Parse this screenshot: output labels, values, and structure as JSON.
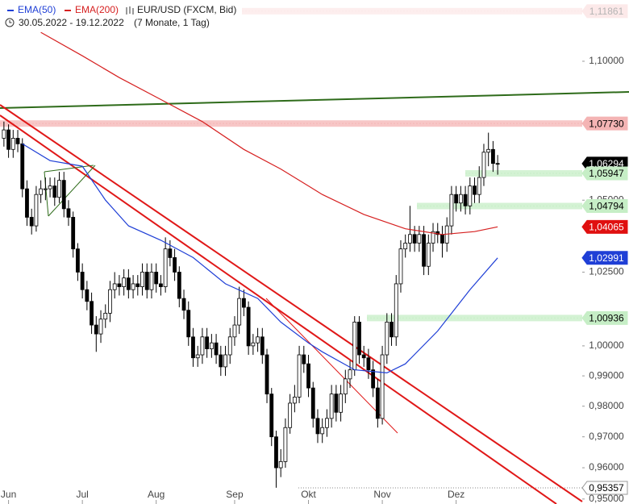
{
  "chart_data": {
    "type": "candlestick",
    "title": "EUR/USD (FXCM, Bid)",
    "period": "30.05.2022 - 19.12.2022",
    "duration": "(7 Monate, 1 Tag)",
    "log_scale": true,
    "ylim": [
      0.9497,
      1.1228
    ],
    "yticks": [
      {
        "value": 1.1,
        "label": "1,10000"
      },
      {
        "value": 1.05,
        "label": "1,05000"
      },
      {
        "value": 1.025,
        "label": "1,02500"
      },
      {
        "value": 1.0,
        "label": "1,00000"
      },
      {
        "value": 0.99,
        "label": "0,99000"
      },
      {
        "value": 0.98,
        "label": "0,98000"
      },
      {
        "value": 0.97,
        "label": "0,97000"
      },
      {
        "value": 0.96,
        "label": "0,96000"
      },
      {
        "value": 0.95,
        "label": "0,95000"
      }
    ],
    "xticks": [
      {
        "value": 1,
        "label": "Jun"
      },
      {
        "value": 17,
        "label": "Jul"
      },
      {
        "value": 33,
        "label": "Aug"
      },
      {
        "value": 50,
        "label": "Sep"
      },
      {
        "value": 66,
        "label": "Okt"
      },
      {
        "value": 82,
        "label": "Nov"
      },
      {
        "value": 98,
        "label": "Dez"
      }
    ],
    "ohlc": {
      "open": [
        1.072,
        1.075,
        1.068,
        1.072,
        1.07,
        1.054,
        1.044,
        1.041,
        1.052,
        1.054,
        1.054,
        1.055,
        1.051,
        1.057,
        1.047,
        1.044,
        1.033,
        1.025,
        1.019,
        1.015,
        1.007,
        1.004,
        1.009,
        1.011,
        1.019,
        1.021,
        1.02,
        1.023,
        1.019,
        1.021,
        1.02,
        1.025,
        1.019,
        1.025,
        1.021,
        1.02,
        1.033,
        1.03,
        1.025,
        1.016,
        1.012,
        1.003,
        0.996,
        0.997,
        1.003,
        0.999,
        1.001,
        0.997,
        0.993,
        0.997,
        1.003,
        1.007,
        1.016,
        1.013,
        1.0,
        1.001,
        1.003,
        0.997,
        0.984,
        0.97,
        0.96,
        0.962,
        0.973,
        0.981,
        0.983,
        0.997,
        0.994,
        0.986,
        0.976,
        0.971,
        0.973,
        0.976,
        0.984,
        0.978,
        0.984,
        0.989,
        0.992,
        1.008,
        0.997,
        0.996,
        0.992,
        0.986,
        0.976,
        0.997,
        1.008,
        1.003,
        1.021,
        1.033,
        1.035,
        1.038,
        1.035,
        1.038,
        1.027,
        1.035,
        1.039,
        1.038,
        1.035,
        1.041,
        1.052,
        1.049,
        1.052,
        1.048,
        1.055,
        1.052,
        1.058,
        1.067,
        1.068,
        1.063
      ],
      "high": [
        1.078,
        1.077,
        1.075,
        1.075,
        1.072,
        1.057,
        1.047,
        1.055,
        1.057,
        1.058,
        1.058,
        1.058,
        1.06,
        1.06,
        1.05,
        1.046,
        1.035,
        1.028,
        1.022,
        1.018,
        1.01,
        1.012,
        1.014,
        1.022,
        1.025,
        1.024,
        1.026,
        1.026,
        1.024,
        1.024,
        1.028,
        1.028,
        1.028,
        1.028,
        1.024,
        1.037,
        1.036,
        1.033,
        1.027,
        1.019,
        1.015,
        1.006,
        1.0,
        1.006,
        1.006,
        1.004,
        1.004,
        1.0,
        1.0,
        1.006,
        1.01,
        1.02,
        1.019,
        1.015,
        1.004,
        1.006,
        1.006,
        0.999,
        0.986,
        0.972,
        0.966,
        0.976,
        0.984,
        0.987,
        1.0,
        1.0,
        0.997,
        0.988,
        0.979,
        0.976,
        0.979,
        0.987,
        0.987,
        0.987,
        0.992,
        0.995,
        1.01,
        1.01,
        1.0,
        0.999,
        0.995,
        0.989,
        1.0,
        1.011,
        1.011,
        1.024,
        1.036,
        1.038,
        1.048,
        1.041,
        1.041,
        1.041,
        1.038,
        1.042,
        1.042,
        1.041,
        1.044,
        1.055,
        1.055,
        1.055,
        1.055,
        1.058,
        1.058,
        1.062,
        1.07,
        1.074,
        1.071,
        1.066
      ],
      "low": [
        1.069,
        1.065,
        1.065,
        1.067,
        1.051,
        1.041,
        1.038,
        1.039,
        1.049,
        1.05,
        1.051,
        1.048,
        1.049,
        1.044,
        1.041,
        1.03,
        1.022,
        1.016,
        1.012,
        1.004,
        0.998,
        1.001,
        1.006,
        1.008,
        1.016,
        1.017,
        1.017,
        1.016,
        1.016,
        1.017,
        1.017,
        1.016,
        1.016,
        1.018,
        1.017,
        1.018,
        1.027,
        1.022,
        1.013,
        1.009,
        1.0,
        0.993,
        0.993,
        0.994,
        0.996,
        0.996,
        0.994,
        0.99,
        0.99,
        0.994,
        1.0,
        1.004,
        1.01,
        0.997,
        0.997,
        0.998,
        0.994,
        0.981,
        0.967,
        0.9536,
        0.957,
        0.96,
        0.971,
        0.978,
        0.981,
        0.991,
        0.983,
        0.973,
        0.968,
        0.968,
        0.97,
        0.973,
        0.975,
        0.975,
        0.981,
        0.986,
        0.99,
        0.994,
        0.993,
        0.989,
        0.983,
        0.973,
        0.974,
        0.994,
        1.0,
        1.0,
        1.018,
        1.03,
        1.032,
        1.032,
        1.032,
        1.024,
        1.024,
        1.032,
        1.035,
        1.03,
        1.032,
        1.038,
        1.046,
        1.046,
        1.045,
        1.045,
        1.049,
        1.049,
        1.055,
        1.062,
        1.06,
        1.059
      ],
      "close": [
        1.075,
        1.068,
        1.072,
        1.07,
        1.054,
        1.044,
        1.041,
        1.052,
        1.054,
        1.054,
        1.055,
        1.051,
        1.057,
        1.047,
        1.044,
        1.033,
        1.025,
        1.019,
        1.015,
        1.007,
        1.004,
        1.009,
        1.011,
        1.019,
        1.021,
        1.02,
        1.023,
        1.019,
        1.021,
        1.02,
        1.025,
        1.019,
        1.025,
        1.021,
        1.02,
        1.033,
        1.03,
        1.025,
        1.016,
        1.012,
        1.003,
        0.996,
        0.997,
        1.003,
        0.999,
        1.001,
        0.997,
        0.993,
        0.997,
        1.003,
        1.007,
        1.016,
        1.013,
        1.0,
        1.001,
        1.003,
        0.997,
        0.984,
        0.97,
        0.96,
        0.962,
        0.973,
        0.981,
        0.983,
        0.997,
        0.994,
        0.986,
        0.976,
        0.971,
        0.973,
        0.976,
        0.984,
        0.978,
        0.984,
        0.989,
        0.992,
        1.008,
        0.997,
        0.996,
        0.992,
        0.986,
        0.976,
        0.997,
        1.008,
        1.003,
        1.021,
        1.033,
        1.035,
        1.038,
        1.035,
        1.038,
        1.027,
        1.035,
        1.039,
        1.038,
        1.035,
        1.041,
        1.052,
        1.049,
        1.052,
        1.048,
        1.055,
        1.052,
        1.058,
        1.067,
        1.068,
        1.063,
        1.06294
      ]
    },
    "indicators": [
      {
        "name": "EMA(50)",
        "color": "#1f3fd6",
        "x": [
          4,
          10,
          17,
          22,
          27,
          34,
          41,
          48,
          55,
          60,
          66,
          69,
          76,
          83,
          87,
          94,
          101,
          107
        ],
        "values": [
          1.07,
          1.064,
          1.062,
          1.05,
          1.041,
          1.036,
          1.03,
          1.021,
          1.016,
          1.008,
          1.001,
          0.998,
          0.992,
          0.991,
          0.994,
          1.005,
          1.019,
          1.02991
        ]
      },
      {
        "name": "EMA(200)",
        "color": "#d62020",
        "x": [
          8,
          17,
          25,
          34,
          43,
          52,
          60,
          69,
          78,
          87,
          95,
          102,
          107
        ],
        "values": [
          1.1107,
          1.102,
          1.094,
          1.086,
          1.078,
          1.068,
          1.061,
          1.052,
          1.045,
          1.04,
          1.038,
          1.039,
          1.04065
        ]
      }
    ],
    "levels": [
      {
        "value": 1.11861,
        "label": "1,11861",
        "color": "#f4b4b4",
        "text_color": "#000000"
      },
      {
        "value": 1.0773,
        "label": "1,07730",
        "color": "#f4b4b4",
        "text_color": "#000000"
      },
      {
        "value": 1.06294,
        "label": "1,06294",
        "color": "#000000",
        "text_color": "#ffffff"
      },
      {
        "value": 1.05947,
        "label": "1,05947",
        "color": "#c6eec6",
        "text_color": "#000000"
      },
      {
        "value": 1.04794,
        "label": "1,04794",
        "color": "#c6eec6",
        "text_color": "#000000"
      },
      {
        "value": 1.04065,
        "label": "1,04065",
        "color": "#e01010",
        "text_color": "#ffffff"
      },
      {
        "value": 1.02991,
        "label": "1,02991",
        "color": "#1f3fd6",
        "text_color": "#ffffff"
      },
      {
        "value": 1.00936,
        "label": "1,00936",
        "color": "#c6eec6",
        "text_color": "#000000"
      },
      {
        "value": 0.95357,
        "label": "0,95357",
        "color": "#ffffff",
        "text_color": "#000000"
      }
    ]
  }
}
